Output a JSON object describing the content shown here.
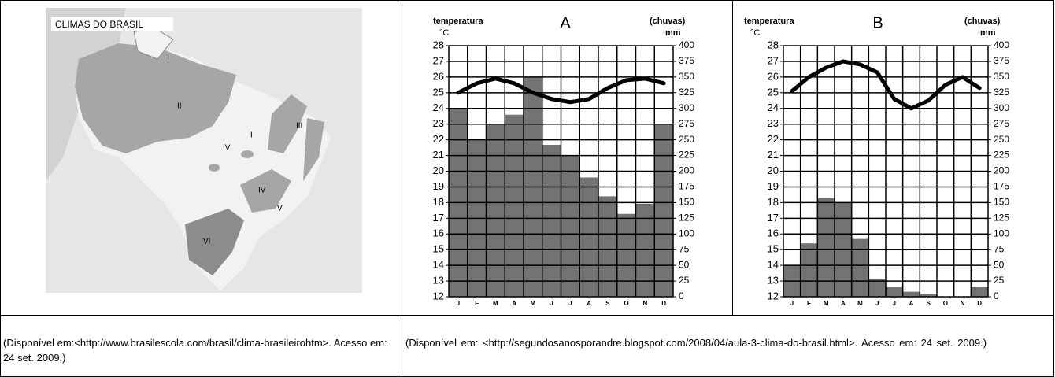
{
  "map": {
    "title": "CLIMAS DO BRASIL",
    "labels": [
      "I",
      "II",
      "I",
      "I",
      "IV",
      "III",
      "IV",
      "V",
      "VI"
    ]
  },
  "chart_data": [
    {
      "type": "climogram",
      "title": "A",
      "ylabel": "temperatura",
      "yunit": "°C",
      "y2label": "(chuvas)",
      "y2unit": "mm",
      "categories": [
        "J",
        "F",
        "M",
        "A",
        "M",
        "J",
        "J",
        "A",
        "S",
        "O",
        "N",
        "D"
      ],
      "series": [
        {
          "type": "bar",
          "axis": "y2",
          "color": "#737373",
          "values": [
            300,
            250,
            275,
            290,
            350,
            242,
            225,
            190,
            160,
            132,
            148,
            275
          ]
        },
        {
          "type": "line",
          "axis": "y",
          "color": "#000000",
          "values": [
            25.0,
            25.6,
            25.9,
            25.6,
            25.0,
            24.6,
            24.4,
            24.6,
            25.3,
            25.8,
            25.9,
            25.6
          ]
        }
      ],
      "ylim": [
        12,
        28
      ],
      "yticks": [
        12,
        13,
        14,
        15,
        16,
        17,
        18,
        19,
        20,
        21,
        22,
        23,
        24,
        25,
        26,
        27,
        28
      ],
      "y2lim": [
        0,
        400
      ],
      "y2ticks": [
        0,
        25,
        50,
        75,
        100,
        125,
        150,
        175,
        200,
        225,
        250,
        275,
        300,
        325,
        350,
        375,
        400
      ],
      "grid": true
    },
    {
      "type": "climogram",
      "title": "B",
      "ylabel": "temperatura",
      "yunit": "°C",
      "y2label": "(chuvas)",
      "y2unit": "mm",
      "categories": [
        "J",
        "F",
        "M",
        "A",
        "M",
        "J",
        "J",
        "A",
        "S",
        "O",
        "N",
        "D"
      ],
      "series": [
        {
          "type": "bar",
          "axis": "y2",
          "color": "#737373",
          "values": [
            50,
            85,
            157,
            150,
            92,
            28,
            15,
            8,
            5,
            0,
            0,
            15
          ]
        },
        {
          "type": "line",
          "axis": "y",
          "color": "#000000",
          "values": [
            25.1,
            26.0,
            26.6,
            27.0,
            26.8,
            26.3,
            24.6,
            24.0,
            24.5,
            25.5,
            26.0,
            25.3
          ]
        }
      ],
      "ylim": [
        12,
        28
      ],
      "yticks": [
        12,
        13,
        14,
        15,
        16,
        17,
        18,
        19,
        20,
        21,
        22,
        23,
        24,
        25,
        26,
        27,
        28
      ],
      "y2lim": [
        0,
        400
      ],
      "y2ticks": [
        0,
        25,
        50,
        75,
        100,
        125,
        150,
        175,
        200,
        225,
        250,
        275,
        300,
        325,
        350,
        375,
        400
      ],
      "grid": true
    }
  ],
  "captions": [
    "(Disponível em:<http://www.brasilescola.com/brasil/clima-brasileirohtm>. Acesso em: 24 set. 2009.)",
    "(Disponível em: <http://segundosanosporandre.blogspot.com/2008/04/aula-3-clima-do-brasil.html>. Acesso em: 24 set. 2009.)"
  ]
}
